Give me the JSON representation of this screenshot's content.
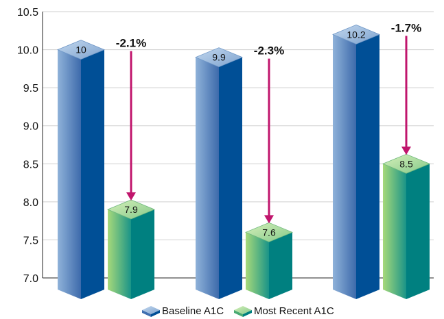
{
  "chart_data": {
    "type": "bar",
    "categories": [
      "",
      "",
      ""
    ],
    "series": [
      {
        "name": "Baseline A1C",
        "values": [
          10.0,
          9.9,
          10.2
        ],
        "labels": [
          "10",
          "9.9",
          "10.2"
        ]
      },
      {
        "name": "Most Recent A1C",
        "values": [
          7.9,
          7.6,
          8.5
        ],
        "labels": [
          "7.9",
          "7.6",
          "8.5"
        ]
      }
    ],
    "changes": [
      "-2.1%",
      "-2.3%",
      "-1.7%"
    ],
    "ylim": [
      7.0,
      10.5
    ],
    "yticks": [
      "7.0",
      "7.5",
      "8.0",
      "8.5",
      "9.0",
      "9.5",
      "10.0",
      "10.5"
    ],
    "grid": true,
    "legend": "bottom",
    "xlabel": "",
    "ylabel": "",
    "colors": {
      "baseline_front": "#3f6fb0",
      "baseline_side": "#004f96",
      "baseline_top": "#9dbde0",
      "recent_front": "#4aaa72",
      "recent_side": "#008080",
      "recent_top": "#b8e3a0",
      "arrow": "#c0156c",
      "grid": "#cfcfcf"
    }
  }
}
